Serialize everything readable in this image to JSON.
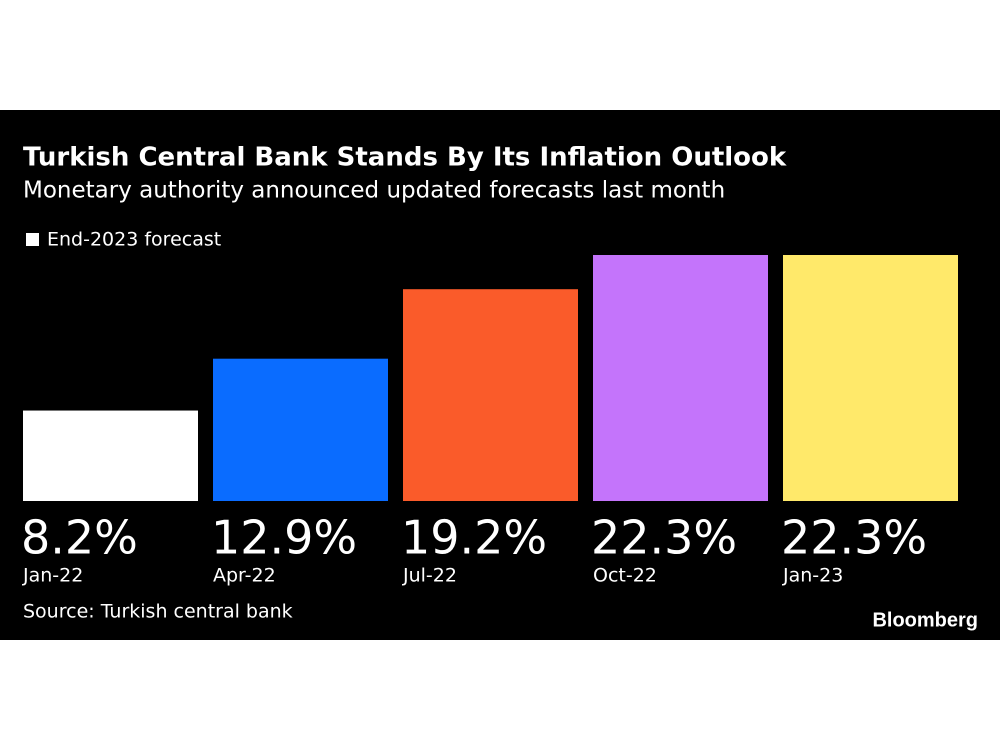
{
  "chart_data": {
    "type": "bar",
    "title": "Turkish Central Bank Stands By Its Inflation Outlook",
    "subtitle": "Monetary authority announced updated forecasts last month",
    "categories": [
      "Jan-22",
      "Apr-22",
      "Jul-22",
      "Oct-22",
      "Jan-23"
    ],
    "series": [
      {
        "name": "End-2023 forecast",
        "legend_color": "#ffffff",
        "colors": [
          "#ffffff",
          "#0a6cff",
          "#fa5b2a",
          "#c474fb",
          "#ffe96a"
        ],
        "values": [
          8.2,
          12.9,
          19.2,
          22.3,
          22.3
        ],
        "value_labels": [
          "8.2%",
          "12.9%",
          "19.2%",
          "22.3%",
          "22.3%"
        ]
      }
    ],
    "source": "Source: Turkish central bank",
    "logo": "Bloomberg"
  }
}
